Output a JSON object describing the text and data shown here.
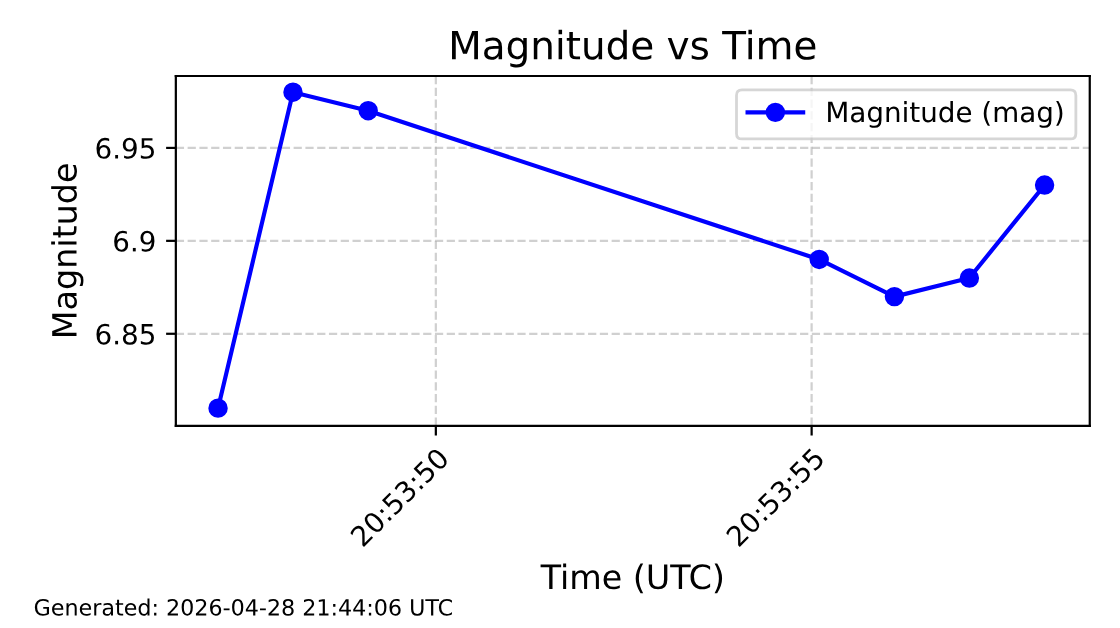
{
  "chart_data": {
    "type": "line",
    "title": "Magnitude vs Time",
    "xlabel": "Time (UTC)",
    "ylabel": "Magnitude",
    "x": [
      20.896417,
      20.896694,
      20.896972,
      20.898639,
      20.898917,
      20.899194,
      20.899472
    ],
    "series": [
      {
        "name": "Magnitude (mag)",
        "color": "#0000ff",
        "values": [
          6.81,
          6.98,
          6.97,
          6.89,
          6.87,
          6.88,
          6.93
        ]
      }
    ],
    "xlim": [
      20.896261,
      20.899639
    ],
    "xticks": [
      {
        "value": 20.897222,
        "label": "20:53:50"
      },
      {
        "value": 20.898611,
        "label": "20:53:55"
      }
    ],
    "ylim": [
      6.8005,
      6.9887
    ],
    "yticks": [
      6.85,
      6.9,
      6.95
    ],
    "grid": true,
    "legend": "top right",
    "marker": "circle",
    "line_style": "solid",
    "annotations": [
      "Generated: 2026-04-28 21:44:06 UTC"
    ]
  }
}
